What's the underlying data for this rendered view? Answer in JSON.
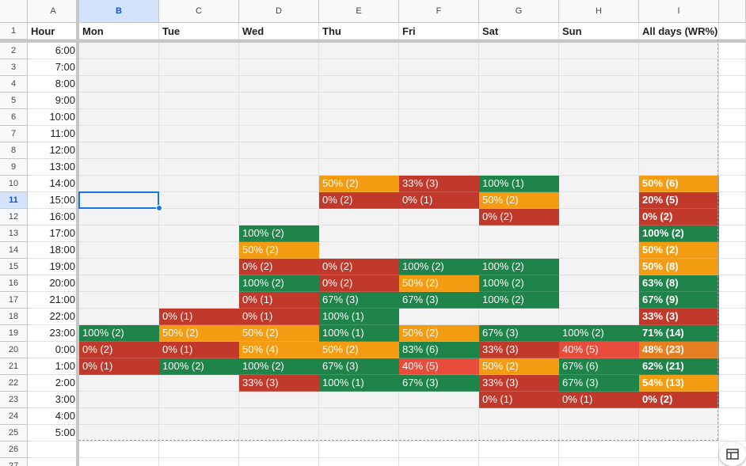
{
  "sheet": {
    "columns": [
      "A",
      "B",
      "C",
      "D",
      "E",
      "F",
      "G",
      "H",
      "I"
    ],
    "selected_column": "B",
    "selected_row": 11,
    "header_row": [
      "Hour",
      "Mon",
      "Tue",
      "Wed",
      "Thu",
      "Fri",
      "Sat",
      "Sun",
      "All days (WR%)"
    ],
    "hours": [
      "6:00",
      "7:00",
      "8:00",
      "9:00",
      "10:00",
      "11:00",
      "12:00",
      "13:00",
      "14:00",
      "15:00",
      "16:00",
      "17:00",
      "18:00",
      "19:00",
      "20:00",
      "21:00",
      "22:00",
      "23:00",
      "0:00",
      "1:00",
      "2:00",
      "3:00",
      "4:00",
      "5:00"
    ],
    "rows": [
      [
        "",
        "",
        "",
        "",
        "",
        "",
        "",
        ""
      ],
      [
        "",
        "",
        "",
        "",
        "",
        "",
        "",
        ""
      ],
      [
        "",
        "",
        "",
        "",
        "",
        "",
        "",
        ""
      ],
      [
        "",
        "",
        "",
        "",
        "",
        "",
        "",
        ""
      ],
      [
        "",
        "",
        "",
        "",
        "",
        "",
        "",
        ""
      ],
      [
        "",
        "",
        "",
        "",
        "",
        "",
        "",
        ""
      ],
      [
        "",
        "",
        "",
        "",
        "",
        "",
        "",
        ""
      ],
      [
        "",
        "",
        "",
        "",
        "",
        "",
        "",
        ""
      ],
      [
        "",
        "",
        "",
        "50% (2)",
        "33% (3)",
        "100% (1)",
        "",
        "50% (6)"
      ],
      [
        "",
        "",
        "",
        "0% (2)",
        "0% (1)",
        "50% (2)",
        "",
        "20% (5)"
      ],
      [
        "",
        "",
        "",
        "",
        "",
        "0% (2)",
        "",
        "0% (2)"
      ],
      [
        "",
        "",
        "100% (2)",
        "",
        "",
        "",
        "",
        "100% (2)"
      ],
      [
        "",
        "",
        "50% (2)",
        "",
        "",
        "",
        "",
        "50% (2)"
      ],
      [
        "",
        "",
        "0% (2)",
        "0% (2)",
        "100% (2)",
        "100% (2)",
        "",
        "50% (8)"
      ],
      [
        "",
        "",
        "100% (2)",
        "0% (2)",
        "50% (2)",
        "100% (2)",
        "",
        "63% (8)"
      ],
      [
        "",
        "",
        "0% (1)",
        "67% (3)",
        "67% (3)",
        "100% (2)",
        "",
        "67% (9)"
      ],
      [
        "",
        "0% (1)",
        "0% (1)",
        "100% (1)",
        "",
        "",
        "",
        "33% (3)"
      ],
      [
        "100% (2)",
        "50% (2)",
        "50% (2)",
        "100% (1)",
        "50% (2)",
        "67% (3)",
        "100% (2)",
        "71% (14)"
      ],
      [
        "0% (2)",
        "0% (1)",
        "50% (4)",
        "50% (2)",
        "83% (6)",
        "33% (3)",
        "40% (5)",
        "48% (23)"
      ],
      [
        "0% (1)",
        "100% (2)",
        "100% (2)",
        "67% (3)",
        "40% (5)",
        "50% (2)",
        "67% (6)",
        "62% (21)"
      ],
      [
        "",
        "",
        "33% (3)",
        "100% (1)",
        "67% (3)",
        "33% (3)",
        "67% (3)",
        "54% (13)"
      ],
      [
        "",
        "",
        "",
        "",
        "",
        "0% (1)",
        "0% (1)",
        "0% (2)"
      ],
      [
        "",
        "",
        "",
        "",
        "",
        "",
        "",
        ""
      ],
      [
        "",
        "",
        "",
        "",
        "",
        "",
        "",
        ""
      ]
    ],
    "colors": {
      "green": "#1e8449",
      "amber": "#f39c12",
      "red": "#c0392b",
      "bright_red": "#e74c3c",
      "orange": "#e67e22",
      "empty_fill": "#f3f3f3"
    },
    "cell_colors": {
      "8": [
        "",
        "",
        "",
        "amber",
        "red",
        "green",
        "",
        "amber"
      ],
      "9": [
        "",
        "",
        "",
        "red",
        "red",
        "amber",
        "",
        "red"
      ],
      "10": [
        "",
        "",
        "",
        "",
        "",
        "red",
        "",
        "red"
      ],
      "11": [
        "",
        "",
        "green",
        "",
        "",
        "",
        "",
        "green"
      ],
      "12": [
        "",
        "",
        "amber",
        "",
        "",
        "",
        "",
        "amber"
      ],
      "13": [
        "",
        "",
        "red",
        "red",
        "green",
        "green",
        "",
        "amber"
      ],
      "14": [
        "",
        "",
        "green",
        "red",
        "amber",
        "green",
        "",
        "green"
      ],
      "15": [
        "",
        "",
        "red",
        "green",
        "green",
        "green",
        "",
        "green"
      ],
      "16": [
        "",
        "red",
        "red",
        "green",
        "",
        "",
        "",
        "red"
      ],
      "17": [
        "green",
        "amber",
        "amber",
        "green",
        "amber",
        "green",
        "green",
        "green"
      ],
      "18": [
        "red",
        "red",
        "amber",
        "amber",
        "green",
        "red",
        "bright_red",
        "orange"
      ],
      "19": [
        "red",
        "green",
        "green",
        "green",
        "bright_red",
        "amber",
        "green",
        "green"
      ],
      "20": [
        "",
        "",
        "red",
        "green",
        "green",
        "red",
        "green",
        "amber"
      ],
      "21": [
        "",
        "",
        "",
        "",
        "",
        "red",
        "red",
        "red"
      ]
    },
    "explore_icon": "table-explore-icon"
  }
}
